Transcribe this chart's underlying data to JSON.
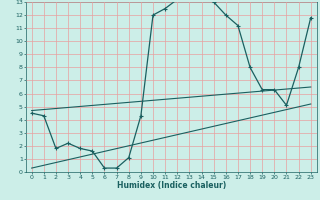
{
  "xlabel": "Humidex (Indice chaleur)",
  "bg_color": "#cceee8",
  "grid_color": "#e8a0a0",
  "line_color": "#1a6060",
  "xlim": [
    -0.5,
    23.5
  ],
  "ylim": [
    0,
    13
  ],
  "xticks": [
    0,
    1,
    2,
    3,
    4,
    5,
    6,
    7,
    8,
    9,
    10,
    11,
    12,
    13,
    14,
    15,
    16,
    17,
    18,
    19,
    20,
    21,
    22,
    23
  ],
  "yticks": [
    0,
    1,
    2,
    3,
    4,
    5,
    6,
    7,
    8,
    9,
    10,
    11,
    12,
    13
  ],
  "line1_x": [
    0,
    1,
    2,
    3,
    4,
    5,
    6,
    7,
    8,
    9,
    10,
    11,
    12,
    13,
    14,
    15,
    16,
    17,
    18,
    19,
    20,
    21,
    22,
    23
  ],
  "line1_y": [
    4.5,
    4.3,
    1.8,
    2.2,
    1.8,
    1.6,
    0.3,
    0.3,
    1.1,
    4.3,
    12.0,
    12.5,
    13.2,
    13.4,
    13.3,
    13.0,
    12.0,
    11.2,
    8.0,
    6.3,
    6.3,
    5.1,
    8.0,
    11.8
  ],
  "line2_x": [
    0,
    23
  ],
  "line2_y": [
    0.3,
    5.2
  ],
  "line3_x": [
    0,
    23
  ],
  "line3_y": [
    4.7,
    6.5
  ]
}
